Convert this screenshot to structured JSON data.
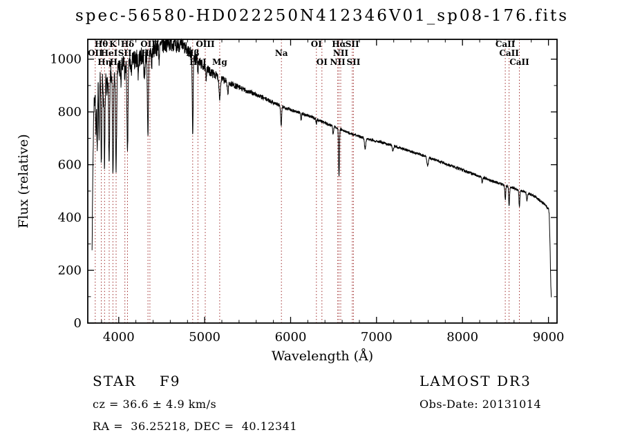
{
  "title": "spec-56580-HD022250N412346V01_sp08-176.fits",
  "footer": {
    "left": [
      "STAR    F9",
      "cz = 36.6 ± 4.9 km/s",
      "RA =  36.25218, DEC =  40.12341"
    ],
    "right": [
      "LAMOST DR3",
      "Obs-Date: 20131014"
    ]
  },
  "chart_data": {
    "type": "line",
    "title": "spec-56580-HD022250N412346V01_sp08-176.fits",
    "xlabel": "Wavelength (Å)",
    "ylabel": "Flux (relative)",
    "xlim": [
      3640,
      9100
    ],
    "ylim": [
      0,
      1075
    ],
    "xticks": [
      4000,
      5000,
      6000,
      7000,
      8000,
      9000
    ],
    "yticks": [
      0,
      200,
      400,
      600,
      800,
      1000
    ],
    "x_minor_step": 200,
    "y_minor_step": 100,
    "grid": false,
    "legend": "none",
    "line_color": "#000000",
    "marker_line_color": "#9e2b2b",
    "series_name": "flux",
    "continuum_anchors": [
      [
        3690,
        290
      ],
      [
        3700,
        600
      ],
      [
        3710,
        820
      ],
      [
        3725,
        870
      ],
      [
        3745,
        905
      ],
      [
        3760,
        915
      ],
      [
        3800,
        925
      ],
      [
        3850,
        935
      ],
      [
        3900,
        945
      ],
      [
        3950,
        955
      ],
      [
        4000,
        965
      ],
      [
        4100,
        985
      ],
      [
        4200,
        1000
      ],
      [
        4300,
        1015
      ],
      [
        4350,
        1025
      ],
      [
        4450,
        1045
      ],
      [
        4550,
        1058
      ],
      [
        4650,
        1062
      ],
      [
        4750,
        1048
      ],
      [
        4850,
        1020
      ],
      [
        4950,
        985
      ],
      [
        5050,
        955
      ],
      [
        5150,
        935
      ],
      [
        5250,
        915
      ],
      [
        5350,
        900
      ],
      [
        5450,
        885
      ],
      [
        5550,
        872
      ],
      [
        5650,
        858
      ],
      [
        5750,
        843
      ],
      [
        5850,
        828
      ],
      [
        5950,
        815
      ],
      [
        6050,
        803
      ],
      [
        6150,
        792
      ],
      [
        6250,
        780
      ],
      [
        6350,
        766
      ],
      [
        6450,
        752
      ],
      [
        6550,
        738
      ],
      [
        6650,
        724
      ],
      [
        6750,
        712
      ],
      [
        6850,
        703
      ],
      [
        6950,
        694
      ],
      [
        7050,
        685
      ],
      [
        7150,
        676
      ],
      [
        7250,
        666
      ],
      [
        7350,
        656
      ],
      [
        7450,
        645
      ],
      [
        7550,
        634
      ],
      [
        7650,
        622
      ],
      [
        7750,
        610
      ],
      [
        7850,
        598
      ],
      [
        7950,
        586
      ],
      [
        8050,
        574
      ],
      [
        8150,
        562
      ],
      [
        8250,
        550
      ],
      [
        8350,
        538
      ],
      [
        8450,
        527
      ],
      [
        8550,
        516
      ],
      [
        8650,
        505
      ],
      [
        8750,
        494
      ],
      [
        8850,
        478
      ],
      [
        8950,
        452
      ],
      [
        9000,
        432
      ],
      [
        9008,
        420
      ],
      [
        9018,
        300
      ],
      [
        9028,
        140
      ],
      [
        9035,
        90
      ]
    ],
    "absorption_features": [
      [
        3734,
        150,
        4
      ],
      [
        3750,
        260,
        5
      ],
      [
        3771,
        200,
        4
      ],
      [
        3798,
        320,
        5
      ],
      [
        3820,
        80,
        4
      ],
      [
        3835,
        360,
        5
      ],
      [
        3860,
        80,
        4
      ],
      [
        3889,
        340,
        6
      ],
      [
        3933,
        400,
        6
      ],
      [
        3970,
        370,
        6
      ],
      [
        4026,
        60,
        4
      ],
      [
        4072,
        50,
        4
      ],
      [
        4102,
        350,
        6
      ],
      [
        4144,
        50,
        4
      ],
      [
        4227,
        60,
        4
      ],
      [
        4300,
        90,
        6
      ],
      [
        4340,
        330,
        6
      ],
      [
        4383,
        60,
        4
      ],
      [
        4471,
        50,
        4
      ],
      [
        4668,
        40,
        4
      ],
      [
        4861,
        300,
        5
      ],
      [
        4922,
        40,
        4
      ],
      [
        5016,
        40,
        4
      ],
      [
        5175,
        75,
        8
      ],
      [
        5270,
        40,
        6
      ],
      [
        5890,
        75,
        6
      ],
      [
        6122,
        25,
        4
      ],
      [
        6300,
        20,
        4
      ],
      [
        6495,
        30,
        5
      ],
      [
        6563,
        180,
        5
      ],
      [
        6867,
        40,
        8
      ],
      [
        7190,
        20,
        6
      ],
      [
        7594,
        35,
        8
      ],
      [
        8228,
        20,
        5
      ],
      [
        8498,
        55,
        5
      ],
      [
        8542,
        75,
        5
      ],
      [
        8662,
        65,
        5
      ],
      [
        8750,
        30,
        5
      ]
    ],
    "noise_profile": [
      [
        3690,
        0.05
      ],
      [
        3800,
        0.045
      ],
      [
        4000,
        0.04
      ],
      [
        4300,
        0.034
      ],
      [
        4600,
        0.03
      ],
      [
        4900,
        0.022
      ],
      [
        5200,
        0.015
      ],
      [
        5600,
        0.01
      ],
      [
        6000,
        0.008
      ],
      [
        6500,
        0.007
      ],
      [
        7000,
        0.007
      ],
      [
        7500,
        0.008
      ],
      [
        8000,
        0.009
      ],
      [
        8500,
        0.01
      ],
      [
        9035,
        0.012
      ]
    ],
    "spectral_lines": [
      {
        "wl": 3727,
        "label": "OII",
        "row": 1
      },
      {
        "wl": 3798,
        "label": "Hθ",
        "row": 0
      },
      {
        "wl": 3835,
        "label": "Hη",
        "row": 2
      },
      {
        "wl": 3889,
        "label": "HeI",
        "row": 1
      },
      {
        "wl": 3933,
        "label": "K",
        "row": 0
      },
      {
        "wl": 3970,
        "label": "Hε",
        "row": 2
      },
      {
        "wl": 4072,
        "label": "SII",
        "row": 1
      },
      {
        "wl": 4102,
        "label": "Hδ",
        "row": 0
      },
      {
        "wl": 4340,
        "label": "Hγ",
        "row": 1
      },
      {
        "wl": 4363,
        "label": "OIII",
        "row": 0
      },
      {
        "wl": 4861,
        "label": "Hβ",
        "row": 1
      },
      {
        "wl": 4922,
        "label": "HeI",
        "row": 2
      },
      {
        "wl": 5007,
        "label": "OIII",
        "row": 0
      },
      {
        "wl": 5175,
        "label": "Mg",
        "row": 2
      },
      {
        "wl": 5893,
        "label": "Na",
        "row": 1
      },
      {
        "wl": 6300,
        "label": "OI",
        "row": 0
      },
      {
        "wl": 6364,
        "label": "OI",
        "row": 2
      },
      {
        "wl": 6548,
        "label": "NII",
        "row": 2
      },
      {
        "wl": 6563,
        "label": "Hα",
        "row": 0
      },
      {
        "wl": 6583,
        "label": "NII",
        "row": 1
      },
      {
        "wl": 6717,
        "label": "SII",
        "row": 0
      },
      {
        "wl": 6731,
        "label": "SII",
        "row": 2
      },
      {
        "wl": 8498,
        "label": "CaII",
        "row": 0
      },
      {
        "wl": 8542,
        "label": "CaII",
        "row": 1
      },
      {
        "wl": 8662,
        "label": "CaII",
        "row": 2
      }
    ]
  }
}
